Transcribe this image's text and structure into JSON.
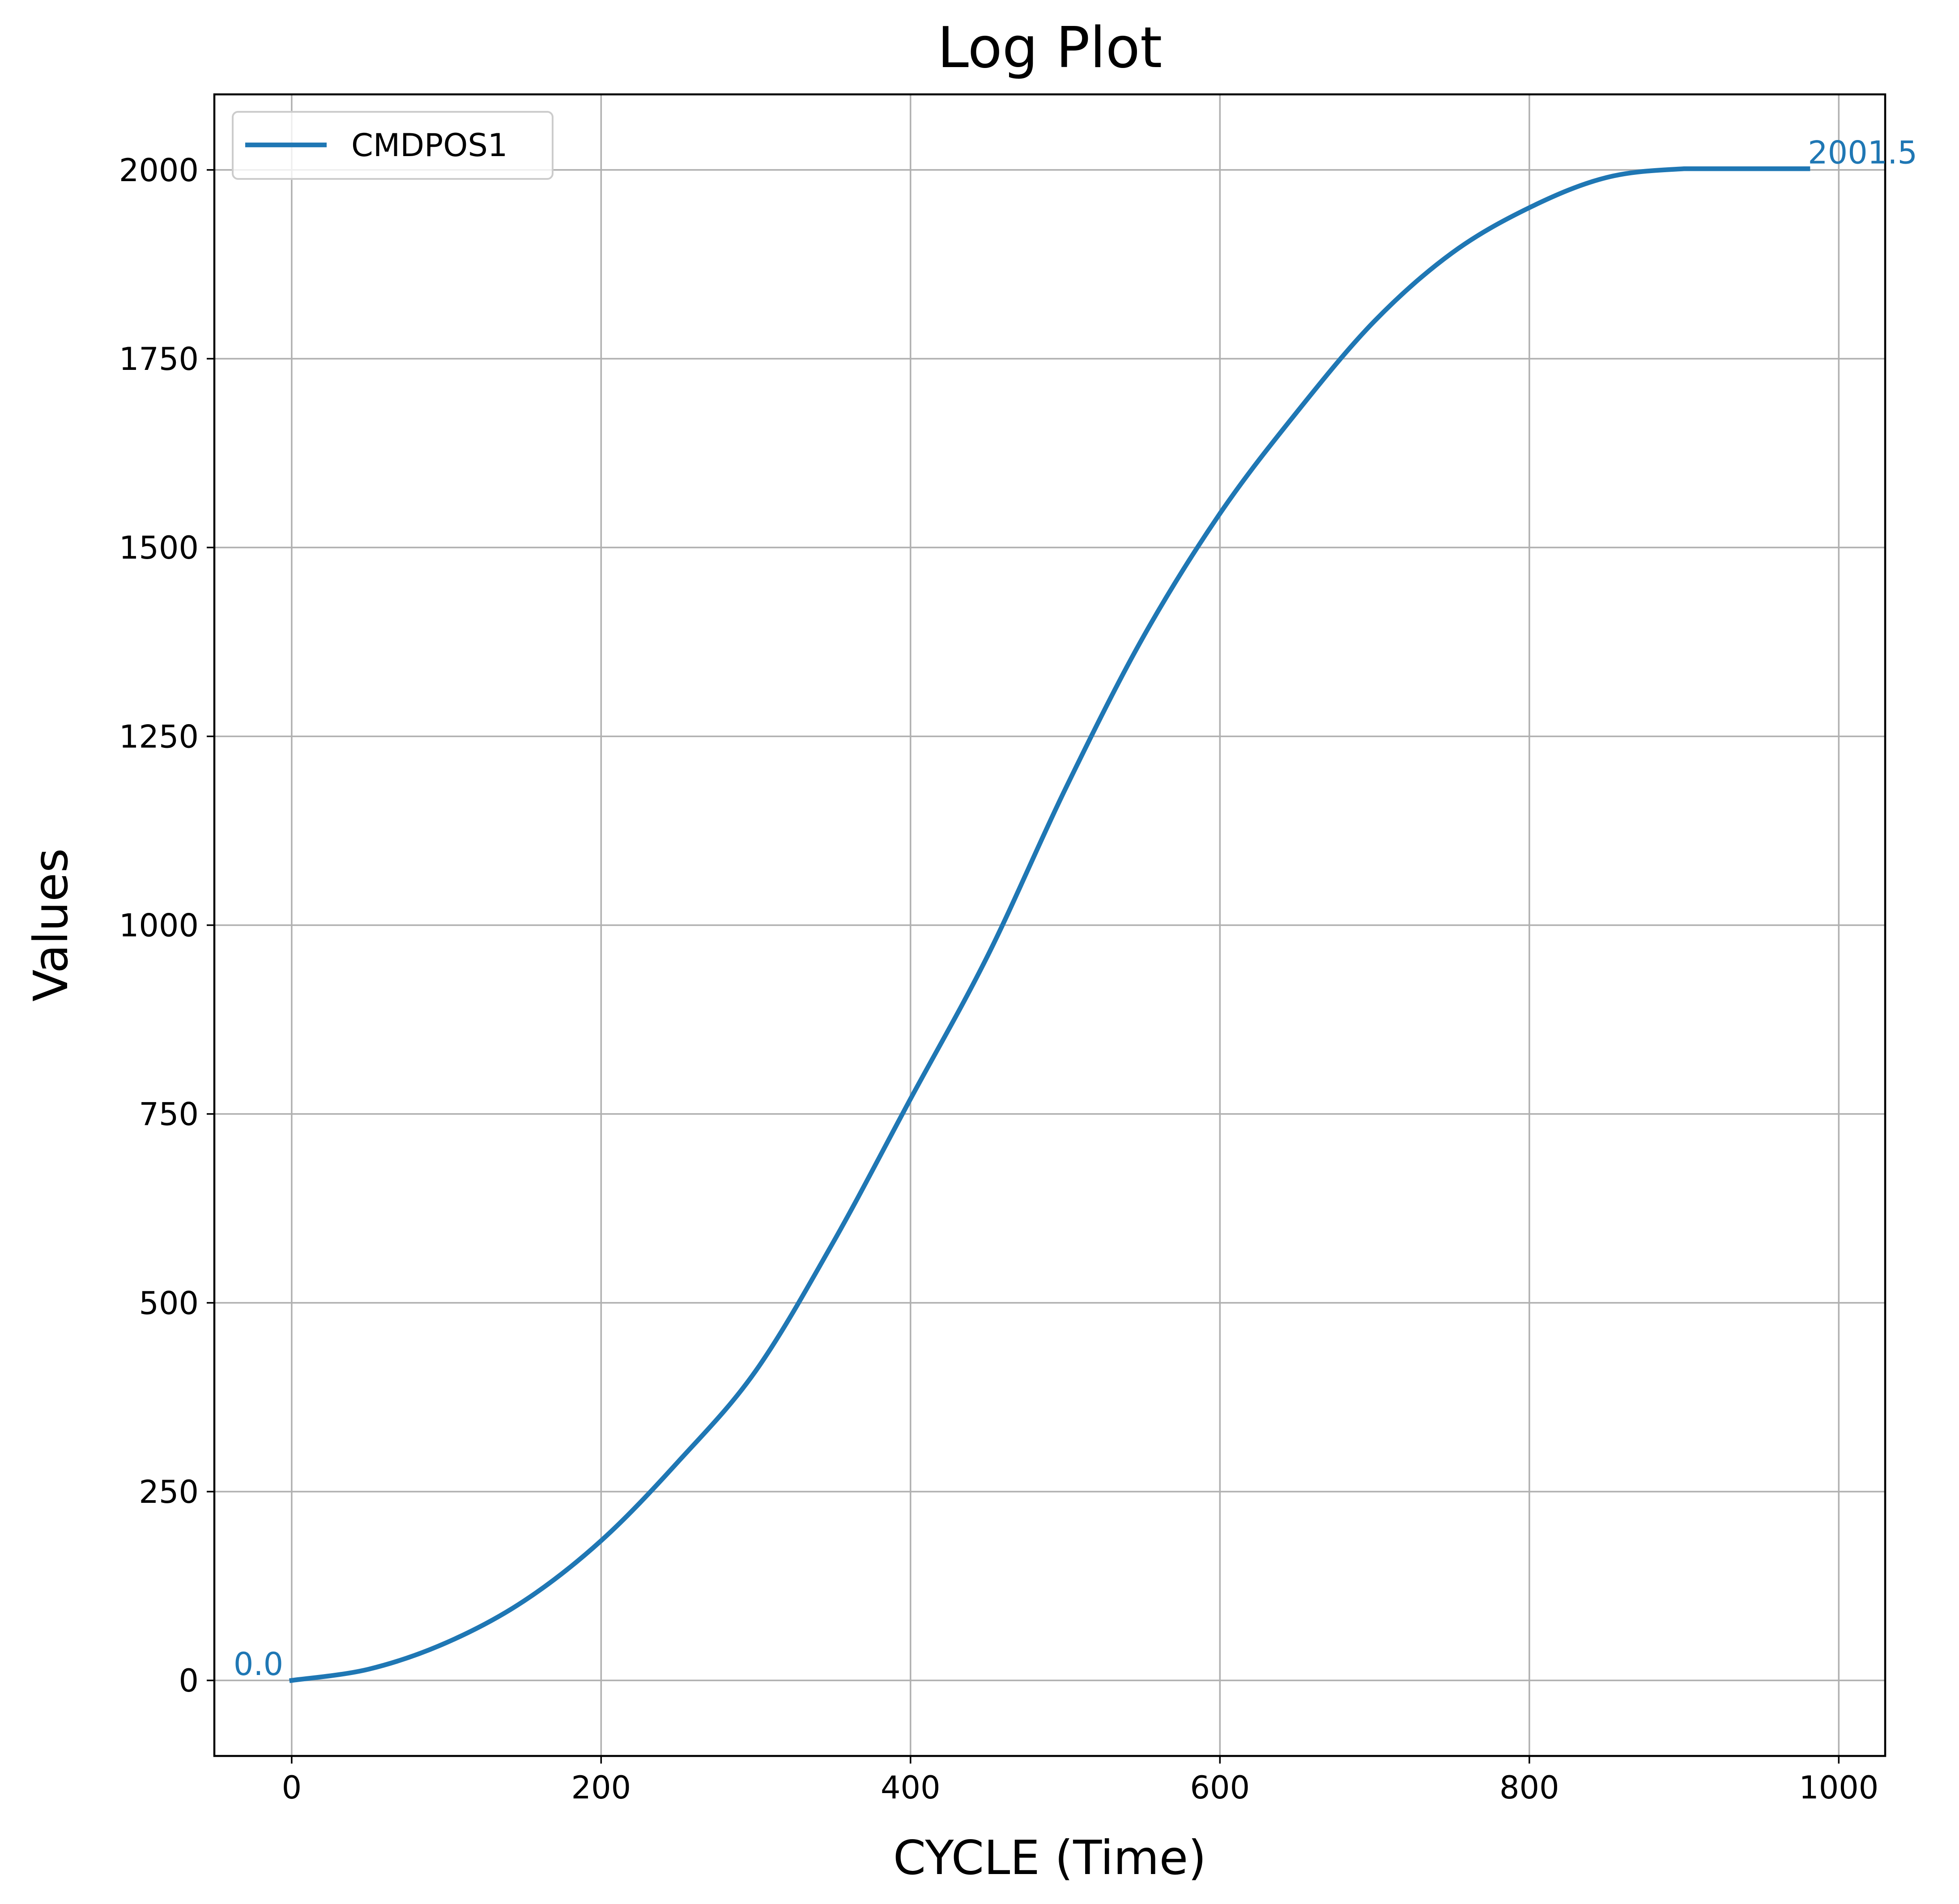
{
  "chart_data": {
    "type": "line",
    "title": "Log Plot",
    "xlabel": "CYCLE (Time)",
    "ylabel": "Values",
    "xlim": [
      -50,
      1030
    ],
    "ylim": [
      -100,
      2100
    ],
    "xticks": [
      0,
      200,
      400,
      600,
      800,
      1000
    ],
    "yticks": [
      0,
      250,
      500,
      750,
      1000,
      1250,
      1500,
      1750,
      2000
    ],
    "grid": true,
    "legend_position": "top-left",
    "series": [
      {
        "name": "CMDPOS1",
        "color": "#1f77b4",
        "x": [
          0,
          50,
          100,
          150,
          200,
          250,
          300,
          350,
          400,
          450,
          500,
          550,
          600,
          650,
          700,
          750,
          800,
          850,
          900,
          950,
          980
        ],
        "y": [
          0.0,
          15,
          50,
          105,
          185,
          290,
          410,
          580,
          770,
          960,
          1180,
          1380,
          1545,
          1680,
          1800,
          1890,
          1950,
          1990,
          2001.5,
          2001.5,
          2001.5
        ]
      }
    ],
    "annotations": [
      {
        "text": "0.0",
        "x": 0,
        "y": 0.0,
        "color": "#1f77b4"
      },
      {
        "text": "2001.5",
        "x": 980,
        "y": 2001.5,
        "color": "#1f77b4"
      }
    ]
  }
}
